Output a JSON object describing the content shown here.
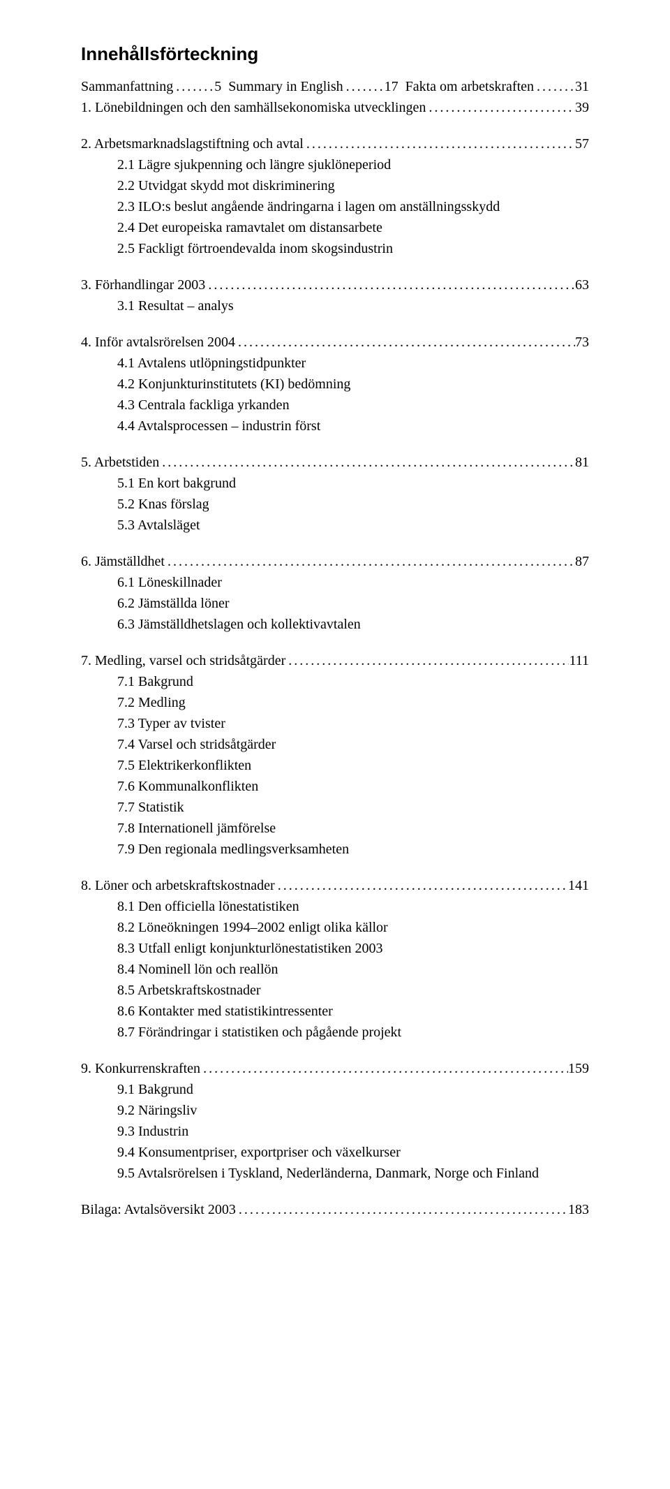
{
  "heading": "Innehållsförteckning",
  "toc": [
    {
      "label": "Sammanfattning",
      "page": "5"
    },
    {
      "label": "Summary in English",
      "page": "17"
    },
    {
      "label": "Fakta om arbetskraften",
      "page": "31"
    },
    {
      "label": "1. Lönebildningen och den samhällsekonomiska utvecklingen",
      "page": "39"
    },
    {
      "label": "2. Arbetsmarknadslagstiftning och avtal",
      "page": "57",
      "subs": [
        "2.1 Lägre sjukpenning och längre sjuklöneperiod",
        "2.2 Utvidgat skydd mot diskriminering",
        "2.3 ILO:s beslut angående ändringarna i lagen om anställningsskydd",
        "2.4 Det europeiska ramavtalet om distansarbete",
        "2.5 Fackligt förtroendevalda inom skogsindustrin"
      ]
    },
    {
      "label": "3. Förhandlingar 2003",
      "page": "63",
      "subs": [
        "3.1 Resultat – analys"
      ]
    },
    {
      "label": "4. Inför avtalsrörelsen 2004",
      "page": "73",
      "subs": [
        "4.1 Avtalens utlöpningstidpunkter",
        "4.2 Konjunkturinstitutets (KI) bedömning",
        "4.3 Centrala fackliga yrkanden",
        "4.4 Avtalsprocessen – industrin först"
      ]
    },
    {
      "label": "5. Arbetstiden",
      "page": "81",
      "subs": [
        "5.1 En kort bakgrund",
        "5.2 Knas förslag",
        "5.3 Avtalsläget"
      ]
    },
    {
      "label": "6. Jämställdhet",
      "page": "87",
      "subs": [
        "6.1 Löneskillnader",
        "6.2 Jämställda löner",
        "6.3 Jämställdhetslagen och kollektivavtalen"
      ]
    },
    {
      "label": "7. Medling, varsel och stridsåtgärder",
      "page": "111",
      "subs": [
        "7.1 Bakgrund",
        "7.2 Medling",
        "7.3 Typer av tvister",
        "7.4 Varsel och stridsåtgärder",
        "7.5 Elektrikerkonflikten",
        "7.6 Kommunalkonflikten",
        "7.7 Statistik",
        "7.8 Internationell jämförelse",
        "7.9 Den regionala medlingsverksamheten"
      ]
    },
    {
      "label": "8. Löner och arbetskraftskostnader",
      "page": "141",
      "subs": [
        "8.1 Den officiella lönestatistiken",
        "8.2 Löneökningen 1994–2002 enligt olika källor",
        "8.3 Utfall enligt konjunkturlönestatistiken 2003",
        "8.4 Nominell lön och reallön",
        "8.5 Arbetskraftskostnader",
        "8.6 Kontakter med statistikintressenter",
        "8.7 Förändringar i statistiken och pågående projekt"
      ]
    },
    {
      "label": "9. Konkurrenskraften",
      "page": "159",
      "subs": [
        "9.1 Bakgrund",
        "9.2 Näringsliv",
        "9.3 Industrin",
        "9.4 Konsumentpriser, exportpriser och växelkurser",
        "9.5 Avtalsrörelsen i Tyskland, Nederländerna, Danmark, Norge och Finland"
      ]
    },
    {
      "label": "Bilaga: Avtalsöversikt 2003",
      "page": "183"
    }
  ]
}
